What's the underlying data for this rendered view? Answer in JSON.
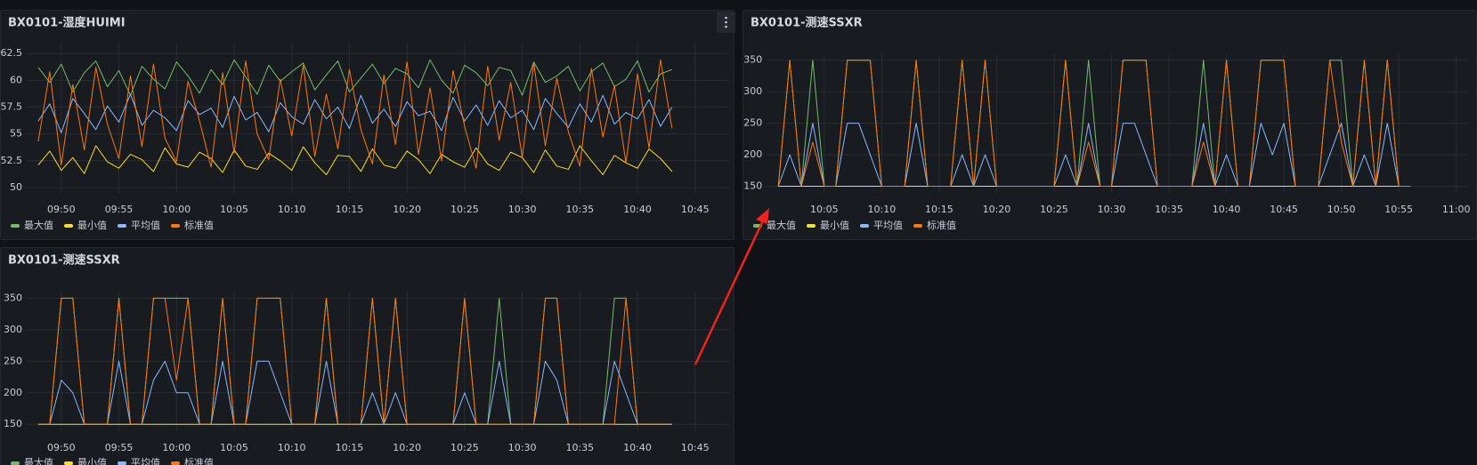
{
  "chart_data": [
    {
      "type": "line",
      "title": "BX0101-湿度HUIMI",
      "x": [
        "09:48",
        "09:49",
        "09:50",
        "09:51",
        "09:52",
        "09:53",
        "09:54",
        "09:55",
        "09:56",
        "09:57",
        "09:58",
        "09:59",
        "10:00",
        "10:01",
        "10:02",
        "10:03",
        "10:04",
        "10:05",
        "10:06",
        "10:07",
        "10:08",
        "10:09",
        "10:10",
        "10:11",
        "10:12",
        "10:13",
        "10:14",
        "10:15",
        "10:16",
        "10:17",
        "10:18",
        "10:19",
        "10:20",
        "10:21",
        "10:22",
        "10:23",
        "10:24",
        "10:25",
        "10:26",
        "10:27",
        "10:28",
        "10:29",
        "10:30",
        "10:31",
        "10:32",
        "10:33",
        "10:34",
        "10:35",
        "10:36",
        "10:37",
        "10:38",
        "10:39",
        "10:40",
        "10:41",
        "10:42",
        "10:43"
      ],
      "xlim": [
        "09:47",
        "10:48"
      ],
      "xticks": [
        "09:50",
        "09:55",
        "10:00",
        "10:05",
        "10:10",
        "10:15",
        "10:20",
        "10:25",
        "10:30",
        "10:35",
        "10:40",
        "10:45"
      ],
      "ylim": [
        49.5,
        63.5
      ],
      "yticks": [
        50,
        52.5,
        55,
        57.5,
        60,
        62.5
      ],
      "grid": true,
      "series": [
        {
          "name": "最大值",
          "color": "#73bf69",
          "values": [
            61.2,
            59.8,
            61.5,
            58.9,
            60.7,
            61.8,
            59.4,
            60.9,
            58.6,
            61.3,
            60.1,
            59.2,
            61.7,
            60.4,
            58.8,
            61.0,
            59.6,
            61.9,
            60.3,
            58.7,
            61.4,
            59.9,
            60.8,
            61.6,
            59.1,
            60.5,
            61.8,
            58.9,
            60.2,
            61.5,
            59.7,
            61.1,
            60.6,
            59.3,
            61.9,
            60.0,
            58.8,
            61.4,
            60.7,
            59.5,
            61.2,
            60.9,
            58.6,
            61.7,
            59.8,
            60.4,
            61.3,
            59.0,
            60.8,
            61.6,
            59.4,
            60.1,
            61.8,
            58.9,
            60.6,
            61.0
          ]
        },
        {
          "name": "最小值",
          "color": "#fade2a",
          "values": [
            52.1,
            53.4,
            51.6,
            52.8,
            51.3,
            53.9,
            52.4,
            51.8,
            53.1,
            52.6,
            51.5,
            53.7,
            52.2,
            51.9,
            53.3,
            52.7,
            51.4,
            53.5,
            52.0,
            51.7,
            53.2,
            52.5,
            51.6,
            53.8,
            52.3,
            51.2,
            53.0,
            52.9,
            51.5,
            53.6,
            52.1,
            51.8,
            53.4,
            52.6,
            51.3,
            53.1,
            52.4,
            51.9,
            53.7,
            52.2,
            51.6,
            53.3,
            52.8,
            51.4,
            53.5,
            52.0,
            51.7,
            53.9,
            52.5,
            51.2,
            53.0,
            52.3,
            51.8,
            53.6,
            52.7,
            51.5
          ]
        },
        {
          "name": "平均值",
          "color": "#8ab8ff",
          "values": [
            56.2,
            57.8,
            55.1,
            58.3,
            56.9,
            55.4,
            57.6,
            56.1,
            58.7,
            55.8,
            57.2,
            56.5,
            55.3,
            58.1,
            56.8,
            57.4,
            55.6,
            58.5,
            56.3,
            57.0,
            55.2,
            57.9,
            56.6,
            55.9,
            58.2,
            56.4,
            57.5,
            55.5,
            58.6,
            56.0,
            57.3,
            55.7,
            58.0,
            56.7,
            57.1,
            55.3,
            58.4,
            56.2,
            57.7,
            55.8,
            58.1,
            56.5,
            57.2,
            55.4,
            58.3,
            56.9,
            55.6,
            57.8,
            56.1,
            58.6,
            55.9,
            57.0,
            56.4,
            58.2,
            55.7,
            57.5
          ]
        },
        {
          "name": "标准值",
          "color": "#ff780a",
          "values": [
            54.3,
            60.8,
            52.1,
            59.6,
            53.5,
            61.2,
            55.9,
            52.7,
            60.4,
            53.8,
            61.5,
            54.6,
            52.4,
            59.9,
            56.2,
            51.9,
            60.7,
            53.2,
            61.8,
            55.0,
            52.6,
            60.1,
            54.8,
            61.4,
            52.9,
            58.7,
            53.6,
            61.0,
            55.4,
            52.2,
            60.5,
            54.0,
            61.7,
            53.1,
            59.3,
            52.5,
            60.9,
            55.7,
            51.8,
            61.3,
            54.4,
            59.8,
            52.8,
            61.6,
            53.9,
            60.2,
            55.2,
            52.0,
            61.1,
            54.7,
            59.5,
            52.3,
            60.6,
            53.7,
            61.9,
            55.5
          ]
        }
      ]
    },
    {
      "type": "line",
      "title": "BX0101-测速SSXR",
      "x": [
        "10:01",
        "10:02",
        "10:03",
        "10:04",
        "10:05",
        "10:06",
        "10:07",
        "10:08",
        "10:09",
        "10:10",
        "10:11",
        "10:12",
        "10:13",
        "10:14",
        "10:15",
        "10:16",
        "10:17",
        "10:18",
        "10:19",
        "10:20",
        "10:21",
        "10:22",
        "10:23",
        "10:24",
        "10:25",
        "10:26",
        "10:27",
        "10:28",
        "10:29",
        "10:30",
        "10:31",
        "10:32",
        "10:33",
        "10:34",
        "10:35",
        "10:36",
        "10:37",
        "10:38",
        "10:39",
        "10:40",
        "10:41",
        "10:42",
        "10:43",
        "10:44",
        "10:45",
        "10:46",
        "10:47",
        "10:48",
        "10:49",
        "10:50",
        "10:51",
        "10:52",
        "10:53",
        "10:54",
        "10:55",
        "10:56"
      ],
      "xlim": [
        "10:00",
        "11:01"
      ],
      "xticks": [
        "10:05",
        "10:10",
        "10:15",
        "10:20",
        "10:25",
        "10:30",
        "10:35",
        "10:40",
        "10:45",
        "10:50",
        "10:55",
        "11:00"
      ],
      "ylim": [
        140,
        360
      ],
      "yticks": [
        150,
        200,
        250,
        300,
        350
      ],
      "grid": true,
      "series": [
        {
          "name": "最大值",
          "color": "#73bf69",
          "values": [
            150,
            350,
            150,
            350,
            150,
            150,
            350,
            350,
            350,
            150,
            150,
            150,
            350,
            150,
            150,
            150,
            350,
            150,
            350,
            150,
            150,
            150,
            150,
            150,
            150,
            350,
            150,
            350,
            150,
            150,
            350,
            350,
            350,
            150,
            150,
            150,
            150,
            350,
            150,
            350,
            150,
            150,
            350,
            350,
            350,
            150,
            150,
            150,
            350,
            350,
            150,
            350,
            150,
            350,
            150,
            150
          ]
        },
        {
          "name": "最小值",
          "color": "#fade2a",
          "values": [
            150,
            150,
            150,
            150,
            150,
            150,
            150,
            150,
            150,
            150,
            150,
            150,
            150,
            150,
            150,
            150,
            150,
            150,
            150,
            150,
            150,
            150,
            150,
            150,
            150,
            150,
            150,
            150,
            150,
            150,
            150,
            150,
            150,
            150,
            150,
            150,
            150,
            150,
            150,
            150,
            150,
            150,
            150,
            150,
            150,
            150,
            150,
            150,
            150,
            150,
            150,
            150,
            150,
            150,
            150,
            150
          ]
        },
        {
          "name": "平均值",
          "color": "#8ab8ff",
          "values": [
            150,
            200,
            150,
            250,
            150,
            150,
            250,
            250,
            200,
            150,
            150,
            150,
            250,
            150,
            150,
            150,
            200,
            150,
            200,
            150,
            150,
            150,
            150,
            150,
            150,
            200,
            150,
            250,
            150,
            150,
            250,
            250,
            200,
            150,
            150,
            150,
            150,
            250,
            150,
            200,
            150,
            150,
            250,
            200,
            250,
            150,
            150,
            150,
            200,
            250,
            150,
            200,
            150,
            250,
            150,
            150
          ]
        },
        {
          "name": "标准值",
          "color": "#ff780a",
          "values": [
            150,
            350,
            150,
            220,
            150,
            150,
            350,
            350,
            350,
            150,
            150,
            150,
            350,
            150,
            150,
            150,
            350,
            150,
            350,
            150,
            150,
            150,
            150,
            150,
            150,
            350,
            150,
            220,
            150,
            150,
            350,
            350,
            350,
            150,
            150,
            150,
            150,
            220,
            150,
            350,
            150,
            150,
            350,
            350,
            350,
            150,
            150,
            150,
            350,
            220,
            150,
            350,
            150,
            350,
            150,
            150
          ]
        }
      ]
    },
    {
      "type": "line",
      "title": "BX0101-测速SSXR",
      "x": [
        "09:48",
        "09:49",
        "09:50",
        "09:51",
        "09:52",
        "09:53",
        "09:54",
        "09:55",
        "09:56",
        "09:57",
        "09:58",
        "09:59",
        "10:00",
        "10:01",
        "10:02",
        "10:03",
        "10:04",
        "10:05",
        "10:06",
        "10:07",
        "10:08",
        "10:09",
        "10:10",
        "10:11",
        "10:12",
        "10:13",
        "10:14",
        "10:15",
        "10:16",
        "10:17",
        "10:18",
        "10:19",
        "10:20",
        "10:21",
        "10:22",
        "10:23",
        "10:24",
        "10:25",
        "10:26",
        "10:27",
        "10:28",
        "10:29",
        "10:30",
        "10:31",
        "10:32",
        "10:33",
        "10:34",
        "10:35",
        "10:36",
        "10:37",
        "10:38",
        "10:39",
        "10:40",
        "10:41",
        "10:42",
        "10:43"
      ],
      "xlim": [
        "09:47",
        "10:48"
      ],
      "xticks": [
        "09:50",
        "09:55",
        "10:00",
        "10:05",
        "10:10",
        "10:15",
        "10:20",
        "10:25",
        "10:30",
        "10:35",
        "10:40",
        "10:45"
      ],
      "ylim": [
        140,
        360
      ],
      "yticks": [
        150,
        200,
        250,
        300,
        350
      ],
      "grid": true,
      "series": [
        {
          "name": "最大值",
          "color": "#73bf69",
          "values": [
            150,
            150,
            350,
            350,
            150,
            150,
            150,
            350,
            150,
            150,
            350,
            350,
            350,
            350,
            150,
            150,
            350,
            150,
            150,
            350,
            350,
            350,
            150,
            150,
            150,
            350,
            150,
            150,
            150,
            350,
            150,
            350,
            150,
            150,
            150,
            150,
            150,
            350,
            150,
            150,
            350,
            150,
            150,
            150,
            350,
            350,
            150,
            150,
            150,
            150,
            350,
            350,
            150,
            150,
            150,
            150
          ]
        },
        {
          "name": "最小值",
          "color": "#fade2a",
          "values": [
            150,
            150,
            150,
            150,
            150,
            150,
            150,
            150,
            150,
            150,
            150,
            150,
            150,
            150,
            150,
            150,
            150,
            150,
            150,
            150,
            150,
            150,
            150,
            150,
            150,
            150,
            150,
            150,
            150,
            150,
            150,
            150,
            150,
            150,
            150,
            150,
            150,
            150,
            150,
            150,
            150,
            150,
            150,
            150,
            150,
            150,
            150,
            150,
            150,
            150,
            150,
            150,
            150,
            150,
            150,
            150
          ]
        },
        {
          "name": "平均值",
          "color": "#8ab8ff",
          "values": [
            150,
            150,
            220,
            200,
            150,
            150,
            150,
            250,
            150,
            150,
            220,
            250,
            200,
            200,
            150,
            150,
            250,
            150,
            150,
            250,
            250,
            200,
            150,
            150,
            150,
            250,
            150,
            150,
            150,
            200,
            150,
            200,
            150,
            150,
            150,
            150,
            150,
            200,
            150,
            150,
            250,
            150,
            150,
            150,
            250,
            220,
            150,
            150,
            150,
            150,
            250,
            200,
            150,
            150,
            150,
            150
          ]
        },
        {
          "name": "标准值",
          "color": "#ff780a",
          "values": [
            150,
            150,
            350,
            350,
            150,
            150,
            150,
            350,
            150,
            150,
            350,
            350,
            220,
            350,
            150,
            150,
            350,
            150,
            150,
            350,
            350,
            350,
            150,
            150,
            150,
            350,
            150,
            150,
            150,
            350,
            150,
            350,
            150,
            150,
            150,
            150,
            150,
            350,
            150,
            150,
            150,
            150,
            150,
            150,
            350,
            350,
            150,
            150,
            150,
            150,
            150,
            350,
            150,
            150,
            150,
            150
          ]
        }
      ]
    }
  ]
}
